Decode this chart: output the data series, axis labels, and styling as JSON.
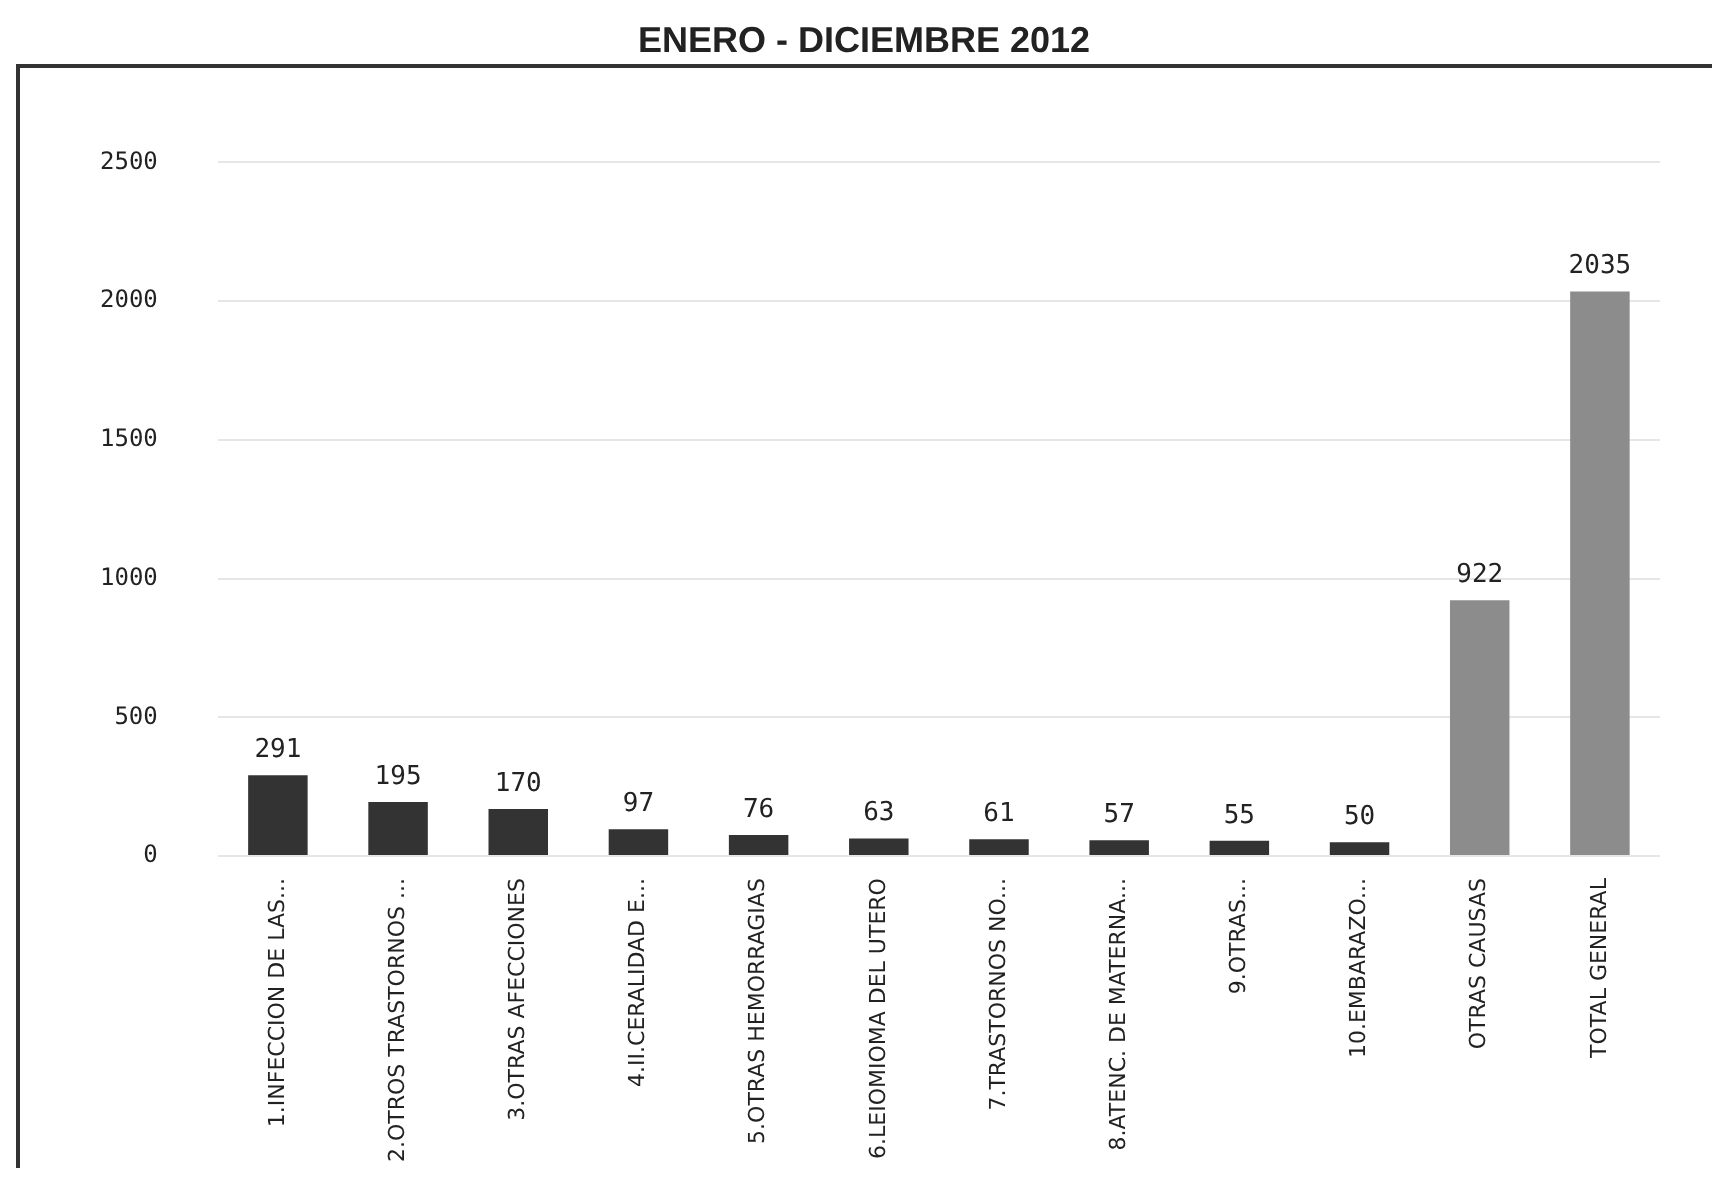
{
  "chart_data": {
    "type": "bar",
    "title": "ENERO - DICIEMBRE 2012",
    "categories": [
      "1.INFECCION DE LAS...",
      "2.OTROS TRASTORNOS ...",
      "3.OTRAS AFECCIONES",
      "4.II.CERALIDAD E...",
      "5.OTRAS HEMORRAGIAS",
      "6.LEIOMIOMA DEL UTERO",
      "7.TRASTORNOS NO...",
      "8.ATENC. DE MATERNA...",
      "9.OTRAS...",
      "10.EMBARAZO...",
      "OTRAS CAUSAS",
      "TOTAL GENERAL"
    ],
    "values": [
      291,
      195,
      170,
      97,
      76,
      63,
      61,
      57,
      55,
      50,
      922,
      2035
    ],
    "colors": [
      "#333333",
      "#333333",
      "#333333",
      "#333333",
      "#333333",
      "#333333",
      "#333333",
      "#333333",
      "#333333",
      "#333333",
      "#8c8c8c",
      "#8c8c8c"
    ],
    "ylim": [
      0,
      2500
    ],
    "yticks": [
      0,
      500,
      1000,
      1500,
      2000,
      2500
    ],
    "grid": "y",
    "data_labels": true,
    "legend": false
  }
}
